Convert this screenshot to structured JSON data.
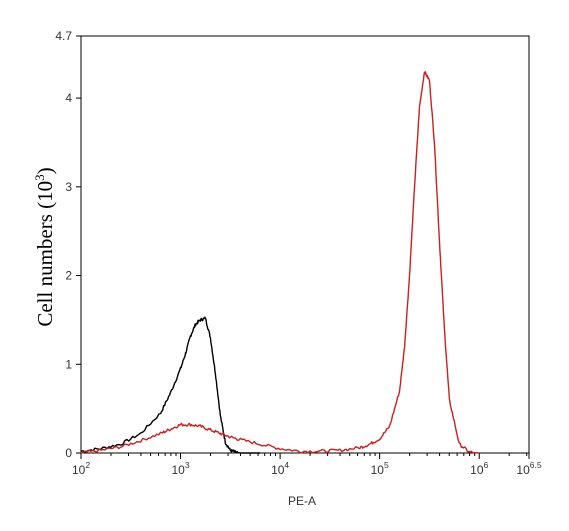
{
  "chart_data": {
    "type": "line",
    "xlabel": "PE-A",
    "ylabel": {
      "text": "Cell numbers (10",
      "sup": "3",
      "close": ")"
    },
    "x_scale": "log10",
    "xlim": [
      2,
      6.5
    ],
    "ylim": [
      0,
      4.7
    ],
    "x_ticks": [
      {
        "base": "10",
        "exp": "2",
        "value": 2
      },
      {
        "base": "10",
        "exp": "3",
        "value": 3
      },
      {
        "base": "10",
        "exp": "4",
        "value": 4
      },
      {
        "base": "10",
        "exp": "5",
        "value": 5
      },
      {
        "base": "10",
        "exp": "6",
        "value": 6
      },
      {
        "base": "10",
        "exp": "6.5",
        "value": 6.5
      }
    ],
    "y_ticks": [
      "0",
      "1",
      "2",
      "3",
      "4",
      "4.7"
    ],
    "grid": false,
    "series": [
      {
        "color": "#000000",
        "x": [
          2.0,
          2.2,
          2.4,
          2.6,
          2.8,
          2.9,
          3.0,
          3.05,
          3.1,
          3.15,
          3.2,
          3.25,
          3.3,
          3.35,
          3.4,
          3.45,
          3.5,
          3.55,
          3.6,
          3.7,
          3.8
        ],
        "y": [
          0.02,
          0.05,
          0.1,
          0.22,
          0.45,
          0.68,
          0.95,
          1.12,
          1.32,
          1.45,
          1.5,
          1.52,
          1.3,
          0.9,
          0.42,
          0.12,
          0.03,
          0.01,
          0.0,
          0.0,
          0.0
        ]
      },
      {
        "color": "#cc1f1f",
        "x": [
          2.0,
          2.2,
          2.4,
          2.6,
          2.8,
          2.9,
          3.0,
          3.1,
          3.2,
          3.3,
          3.4,
          3.5,
          3.6,
          3.8,
          4.0,
          4.2,
          4.4,
          4.6,
          4.8,
          4.9,
          5.0,
          5.1,
          5.2,
          5.25,
          5.3,
          5.35,
          5.4,
          5.45,
          5.5,
          5.55,
          5.6,
          5.65,
          5.7,
          5.8,
          5.9,
          6.0
        ],
        "y": [
          0.0,
          0.03,
          0.07,
          0.14,
          0.22,
          0.27,
          0.32,
          0.32,
          0.3,
          0.26,
          0.22,
          0.18,
          0.15,
          0.1,
          0.05,
          0.02,
          0.02,
          0.03,
          0.06,
          0.1,
          0.16,
          0.3,
          0.7,
          1.2,
          2.0,
          3.0,
          3.9,
          4.3,
          4.2,
          3.5,
          2.4,
          1.4,
          0.6,
          0.1,
          0.01,
          0.0
        ]
      }
    ]
  }
}
